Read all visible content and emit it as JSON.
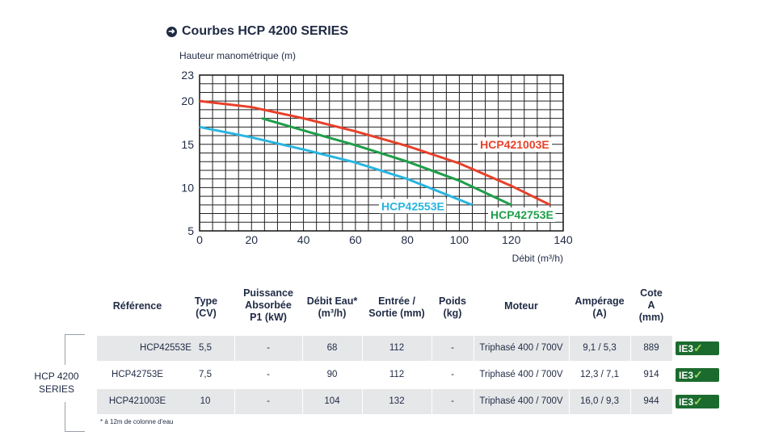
{
  "header": {
    "title": "Courbes HCP 4200 SERIES",
    "icon": "arrow-circle-icon"
  },
  "chart_data": {
    "type": "line",
    "ylabel": "Hauteur manométrique (m)",
    "xlabel": "Débit (m³/h)",
    "xlim": [
      0,
      140
    ],
    "ylim": [
      5,
      23
    ],
    "xticks": [
      0,
      20,
      40,
      60,
      80,
      100,
      120,
      140
    ],
    "yticks": [
      5,
      10,
      15,
      20,
      23
    ],
    "grid": true,
    "series": [
      {
        "name": "HCP421003E",
        "color": "#e8402a",
        "x": [
          0,
          20,
          40,
          60,
          80,
          100,
          120,
          135
        ],
        "y": [
          20,
          19.3,
          18,
          16.5,
          14.8,
          12.8,
          10.2,
          8
        ]
      },
      {
        "name": "HCP42753E",
        "color": "#1f9e4a",
        "x": [
          24,
          40,
          60,
          80,
          100,
          120
        ],
        "y": [
          18,
          16.6,
          14.9,
          13,
          10.8,
          8
        ]
      },
      {
        "name": "HCP42553E",
        "color": "#29b5e0",
        "x": [
          0,
          20,
          40,
          60,
          80,
          105
        ],
        "y": [
          17,
          15.8,
          14.4,
          12.9,
          11,
          8
        ]
      }
    ]
  },
  "table": {
    "headers": [
      "Référence",
      "Type\n(CV)",
      "Puissance\nAbsorbée\nP1 (kW)",
      "Débit Eau*\n(m³/h)",
      "Entrée /\nSortie (mm)",
      "Poids\n(kg)",
      "Moteur",
      "Ampérage\n(A)",
      "Cote\nA\n(mm)"
    ],
    "rows": [
      {
        "ref": "HCP42553E",
        "type": "5,5",
        "p1": "-",
        "debit": "68",
        "es": "112",
        "poids": "-",
        "moteur": "Triphasé 400 / 700V",
        "amp": "9,1 / 5,3",
        "cote": "889",
        "badge": "IE3"
      },
      {
        "ref": "HCP42753E",
        "type": "7,5",
        "p1": "-",
        "debit": "90",
        "es": "112",
        "poids": "-",
        "moteur": "Triphasé 400 / 700V",
        "amp": "12,3 / 7,1",
        "cote": "914",
        "badge": "IE3"
      },
      {
        "ref": "HCP421003E",
        "type": "10",
        "p1": "-",
        "debit": "104",
        "es": "132",
        "poids": "-",
        "moteur": "Triphasé 400 / 700V",
        "amp": "16,0 / 9,3",
        "cote": "944",
        "badge": "IE3"
      }
    ],
    "badge_check": "✓"
  },
  "series_label": "HCP 4200\nSERIES",
  "footnote": "* à 12m de colonne d'eau"
}
